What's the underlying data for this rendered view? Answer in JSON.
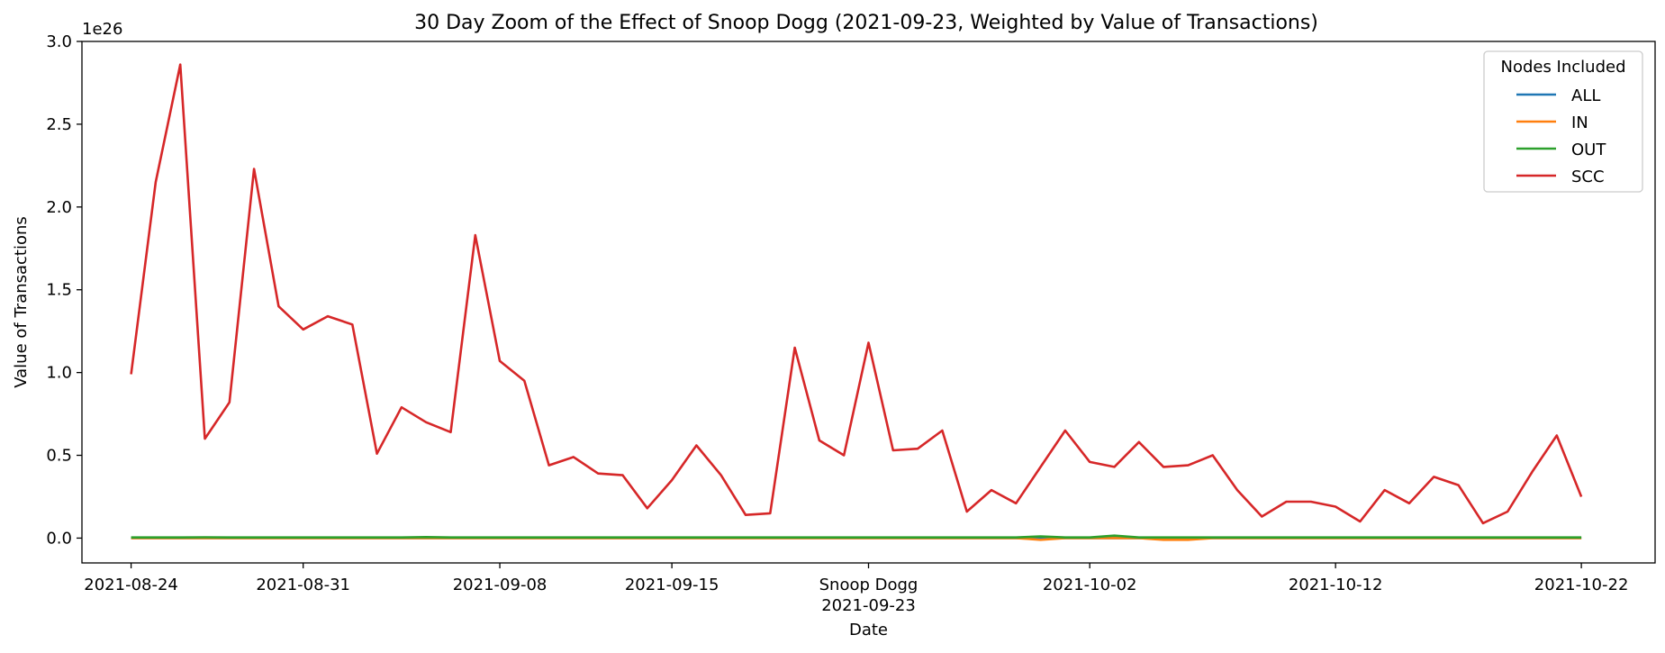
{
  "chart_data": {
    "type": "line",
    "title": "30 Day Zoom of the Effect of Snoop Dogg (2021-09-23, Weighted by Value of Transactions)",
    "xlabel": "Date",
    "ylabel": "Value of Transactions",
    "y_scale_label": "1e26",
    "ylim": [
      -0.15,
      3.0
    ],
    "y_ticks": [
      0.0,
      0.5,
      1.0,
      1.5,
      2.0,
      2.5,
      3.0
    ],
    "y_tick_labels": [
      "0.0",
      "0.5",
      "1.0",
      "1.5",
      "2.0",
      "2.5",
      "3.0"
    ],
    "x_start": "2021-08-24",
    "x_end": "2021-10-22",
    "x_range": [
      "2021-08-22",
      "2021-10-25"
    ],
    "x_ticks": [
      {
        "date": "2021-08-24",
        "label": "2021-08-24"
      },
      {
        "date": "2021-08-31",
        "label": "2021-08-31"
      },
      {
        "date": "2021-09-08",
        "label": "2021-09-08"
      },
      {
        "date": "2021-09-15",
        "label": "2021-09-15"
      },
      {
        "date": "2021-09-23",
        "label": "2021-09-23",
        "event": "Snoop Dogg"
      },
      {
        "date": "2021-10-02",
        "label": "2021-10-02"
      },
      {
        "date": "2021-10-12",
        "label": "2021-10-12"
      },
      {
        "date": "2021-10-22",
        "label": "2021-10-22"
      }
    ],
    "legend": {
      "title": "Nodes Included",
      "position": "upper right"
    },
    "grid": false,
    "series": [
      {
        "name": "ALL",
        "color": "#1f77b4",
        "values": "near-zero"
      },
      {
        "name": "IN",
        "color": "#ff7f0e",
        "values": [
          0,
          0,
          0,
          0,
          0,
          0,
          0,
          0,
          0,
          0,
          0,
          0,
          0,
          0,
          0,
          0,
          0,
          0,
          0,
          0,
          0,
          0,
          0,
          0,
          0,
          0,
          0,
          0,
          0,
          0,
          0,
          0,
          0,
          0,
          0,
          0,
          0,
          -0.01,
          0,
          0,
          0,
          0,
          -0.01,
          -0.01,
          0,
          0,
          0,
          0,
          0,
          0,
          0,
          0,
          0,
          0,
          0,
          0,
          0,
          0,
          0,
          0
        ]
      },
      {
        "name": "OUT",
        "color": "#2ca02c",
        "values": [
          0.004,
          0.004,
          0.004,
          0.005,
          0.004,
          0.004,
          0.004,
          0.004,
          0.004,
          0.004,
          0.004,
          0.004,
          0.006,
          0.004,
          0.004,
          0.004,
          0.004,
          0.004,
          0.004,
          0.004,
          0.004,
          0.004,
          0.004,
          0.004,
          0.004,
          0.004,
          0.004,
          0.004,
          0.004,
          0.004,
          0.004,
          0.004,
          0.004,
          0.004,
          0.004,
          0.004,
          0.004,
          0.01,
          0.004,
          0.004,
          0.015,
          0.004,
          0.004,
          0.004,
          0.004,
          0.004,
          0.004,
          0.004,
          0.004,
          0.004,
          0.004,
          0.004,
          0.004,
          0.004,
          0.004,
          0.004,
          0.004,
          0.004,
          0.004,
          0.004
        ]
      },
      {
        "name": "SCC",
        "color": "#d62728",
        "values": [
          0.99,
          2.15,
          2.86,
          0.6,
          0.82,
          2.23,
          1.4,
          1.26,
          1.34,
          1.29,
          0.51,
          0.79,
          0.7,
          0.64,
          1.83,
          1.07,
          0.95,
          0.44,
          0.49,
          0.39,
          0.38,
          0.18,
          0.35,
          0.56,
          0.38,
          0.14,
          0.15,
          1.15,
          0.59,
          0.5,
          1.18,
          0.53,
          0.54,
          0.65,
          0.16,
          0.29,
          0.21,
          0.43,
          0.65,
          0.46,
          0.43,
          0.58,
          0.43,
          0.44,
          0.5,
          0.29,
          0.13,
          0.22,
          0.22,
          0.19,
          0.1,
          0.29,
          0.21,
          0.37,
          0.32,
          0.09,
          0.16,
          0.4,
          0.62,
          0.25
        ]
      }
    ]
  }
}
